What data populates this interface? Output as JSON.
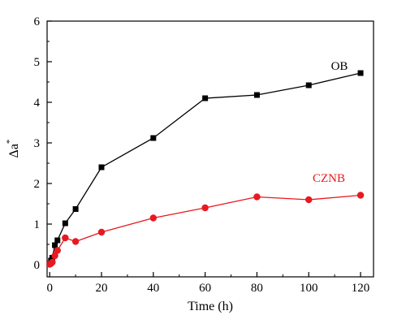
{
  "chart_data": {
    "type": "line",
    "xlabel": "Time (h)",
    "ylabel": {
      "base": "Δa",
      "sup": "*"
    },
    "xlim": [
      -1,
      125
    ],
    "ylim": [
      -0.3,
      6
    ],
    "xticks": [
      0,
      20,
      40,
      60,
      80,
      100,
      120
    ],
    "yticks": [
      0,
      1,
      2,
      3,
      4,
      5,
      6
    ],
    "x_minor_step": 10,
    "y_minor_step": 0.5,
    "grid": false,
    "legend": "none",
    "series": [
      {
        "name": "OB",
        "color": "#000000",
        "marker": "square",
        "x": [
          0,
          0.5,
          1,
          2,
          3,
          6,
          10,
          20,
          40,
          60,
          80,
          100,
          120
        ],
        "y": [
          0.02,
          0.1,
          0.17,
          0.48,
          0.6,
          1.02,
          1.37,
          2.4,
          3.12,
          4.1,
          4.18,
          4.42,
          4.72
        ]
      },
      {
        "name": "CZNB",
        "color": "#e8191f",
        "marker": "circle",
        "x": [
          0,
          0.5,
          1,
          2,
          3,
          6,
          10,
          20,
          40,
          60,
          80,
          100,
          120
        ],
        "y": [
          0.01,
          0.03,
          0.06,
          0.22,
          0.35,
          0.66,
          0.57,
          0.8,
          1.15,
          1.4,
          1.67,
          1.6,
          1.71
        ]
      }
    ]
  }
}
